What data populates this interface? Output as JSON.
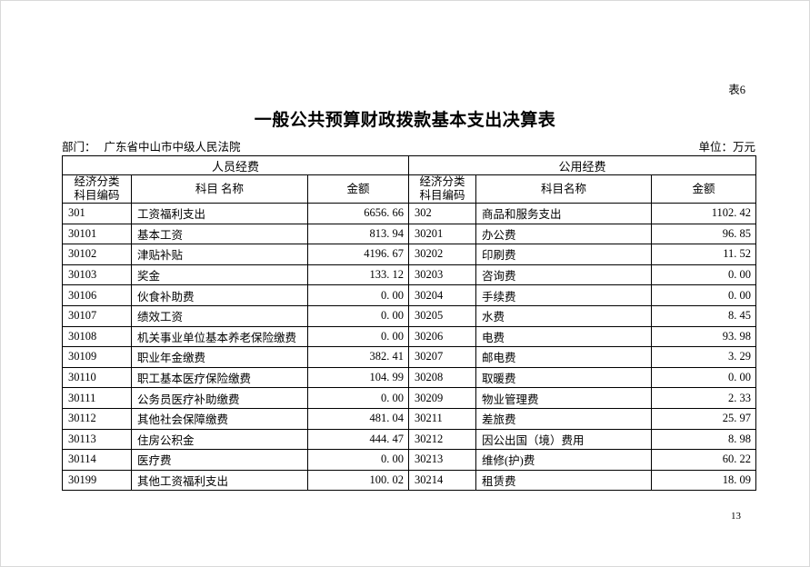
{
  "page": {
    "table_label": "表6",
    "title": "一般公共预算财政拨款基本支出决算表",
    "department_label": "部门：",
    "department": "广东省中山市中级人民法院",
    "unit_label": "单位：万元",
    "page_number": "13"
  },
  "table": {
    "code_header_line1": "经济分类",
    "code_header_line2": "科目编码",
    "name_header_left": "科目 名称",
    "name_header_right": "科目名称",
    "amount_header": "金额",
    "sections": [
      {
        "title": "人员经费",
        "rows": [
          {
            "code": "301",
            "name": "工资福利支出",
            "amount": "6656. 66"
          },
          {
            "code": "30101",
            "name": "基本工资",
            "amount": "813. 94"
          },
          {
            "code": "30102",
            "name": "津贴补贴",
            "amount": "4196. 67"
          },
          {
            "code": "30103",
            "name": "奖金",
            "amount": "133. 12"
          },
          {
            "code": "30106",
            "name": "伙食补助费",
            "amount": "0. 00"
          },
          {
            "code": "30107",
            "name": "绩效工资",
            "amount": "0. 00"
          },
          {
            "code": "30108",
            "name": "机关事业单位基本养老保险缴费",
            "amount": "0. 00"
          },
          {
            "code": "30109",
            "name": "职业年金缴费",
            "amount": "382. 41"
          },
          {
            "code": "30110",
            "name": "职工基本医疗保险缴费",
            "amount": "104. 99"
          },
          {
            "code": "30111",
            "name": "公务员医疗补助缴费",
            "amount": "0. 00"
          },
          {
            "code": "30112",
            "name": "其他社会保障缴费",
            "amount": "481. 04"
          },
          {
            "code": "30113",
            "name": "住房公积金",
            "amount": "444. 47"
          },
          {
            "code": "30114",
            "name": "医疗费",
            "amount": "0. 00"
          },
          {
            "code": "30199",
            "name": "其他工资福利支出",
            "amount": "100. 02"
          }
        ]
      },
      {
        "title": "公用经费",
        "rows": [
          {
            "code": "302",
            "name": "商品和服务支出",
            "amount": "1102. 42"
          },
          {
            "code": "30201",
            "name": "办公费",
            "amount": "96. 85"
          },
          {
            "code": "30202",
            "name": "印刷费",
            "amount": "11. 52"
          },
          {
            "code": "30203",
            "name": "咨询费",
            "amount": "0. 00"
          },
          {
            "code": "30204",
            "name": "手续费",
            "amount": "0. 00"
          },
          {
            "code": "30205",
            "name": "水费",
            "amount": "8. 45"
          },
          {
            "code": "30206",
            "name": "电费",
            "amount": "93. 98"
          },
          {
            "code": "30207",
            "name": "邮电费",
            "amount": "3. 29"
          },
          {
            "code": "30208",
            "name": "取暖费",
            "amount": "0. 00"
          },
          {
            "code": "30209",
            "name": "物业管理费",
            "amount": "2. 33"
          },
          {
            "code": "30211",
            "name": "差旅费",
            "amount": "25. 97"
          },
          {
            "code": "30212",
            "name": "因公出国（境）费用",
            "amount": "8. 98"
          },
          {
            "code": "30213",
            "name": "维修(护)费",
            "amount": "60. 22"
          },
          {
            "code": "30214",
            "name": "租赁费",
            "amount": "18. 09"
          }
        ]
      }
    ]
  }
}
